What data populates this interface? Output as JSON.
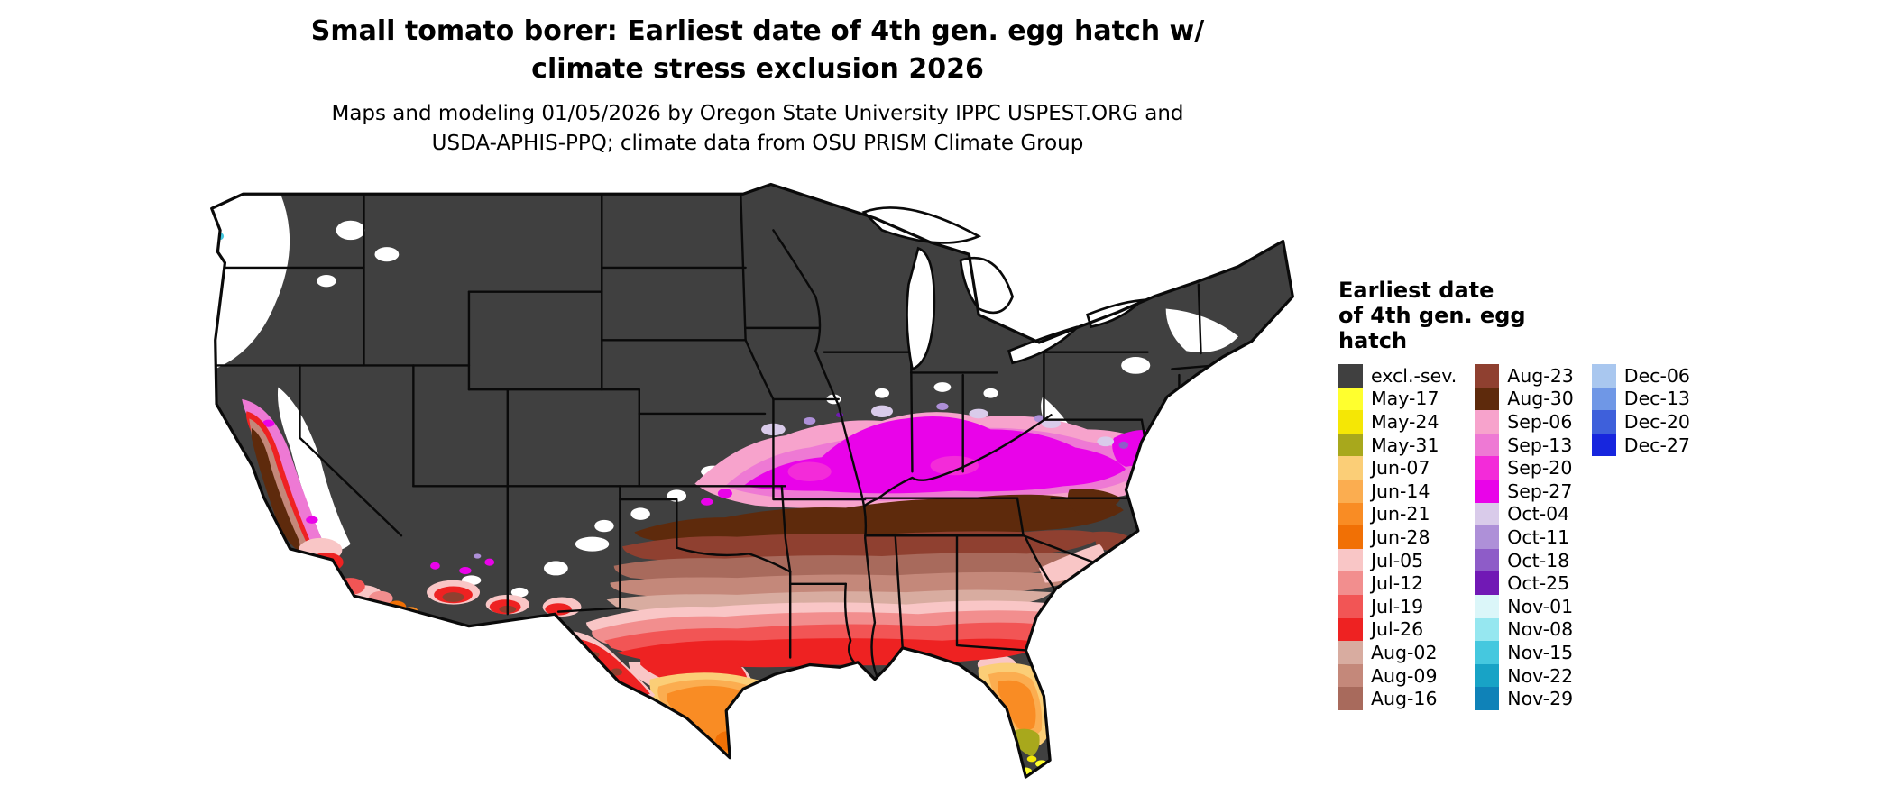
{
  "title": {
    "line1": "Small tomato borer: Earliest date of 4th gen. egg hatch w/",
    "line2": "climate stress exclusion 2026"
  },
  "subtitle": {
    "line1": "Maps and modeling 01/05/2026 by Oregon State University IPPC USPEST.ORG and",
    "line2": "USDA-APHIS-PPQ; climate data from OSU PRISM Climate Group"
  },
  "legend": {
    "title_lines": [
      "Earliest date",
      "of 4th gen. egg",
      "hatch"
    ],
    "columns": [
      [
        {
          "label": "excl.-sev.",
          "color": "#404040"
        },
        {
          "label": "May-17",
          "color": "#FFFF2E"
        },
        {
          "label": "May-24",
          "color": "#F5E705"
        },
        {
          "label": "May-31",
          "color": "#A8A81C"
        },
        {
          "label": "Jun-07",
          "color": "#FBCE77"
        },
        {
          "label": "Jun-14",
          "color": "#FBAD50"
        },
        {
          "label": "Jun-21",
          "color": "#F98C24"
        },
        {
          "label": "Jun-28",
          "color": "#F17005"
        },
        {
          "label": "Jul-05",
          "color": "#F9C6C6"
        },
        {
          "label": "Jul-12",
          "color": "#F28E8E"
        },
        {
          "label": "Jul-19",
          "color": "#F25555"
        },
        {
          "label": "Jul-26",
          "color": "#EE2222"
        },
        {
          "label": "Aug-02",
          "color": "#D8ACA0"
        },
        {
          "label": "Aug-09",
          "color": "#C4887A"
        },
        {
          "label": "Aug-16",
          "color": "#A86A5C"
        }
      ],
      [
        {
          "label": "Aug-23",
          "color": "#8F4030"
        },
        {
          "label": "Aug-30",
          "color": "#5E2A0C"
        },
        {
          "label": "Sep-06",
          "color": "#F7A3CC"
        },
        {
          "label": "Sep-13",
          "color": "#EE79D4"
        },
        {
          "label": "Sep-20",
          "color": "#F32BD9"
        },
        {
          "label": "Sep-27",
          "color": "#E903E9"
        },
        {
          "label": "Oct-04",
          "color": "#D9CBEA"
        },
        {
          "label": "Oct-11",
          "color": "#AE90D8"
        },
        {
          "label": "Oct-18",
          "color": "#8E5CC8"
        },
        {
          "label": "Oct-25",
          "color": "#7119B5"
        },
        {
          "label": "Nov-01",
          "color": "#DBF6F9"
        },
        {
          "label": "Nov-08",
          "color": "#96E7F0"
        },
        {
          "label": "Nov-15",
          "color": "#45C8DF"
        },
        {
          "label": "Nov-22",
          "color": "#18A3C6"
        },
        {
          "label": "Nov-29",
          "color": "#0F82B8"
        }
      ],
      [
        {
          "label": "Dec-06",
          "color": "#A9C7EF"
        },
        {
          "label": "Dec-13",
          "color": "#6F97E6"
        },
        {
          "label": "Dec-20",
          "color": "#3E60DB"
        },
        {
          "label": "Dec-27",
          "color": "#1726DE"
        }
      ]
    ]
  },
  "map": {
    "region": "Contiguous United States"
  }
}
